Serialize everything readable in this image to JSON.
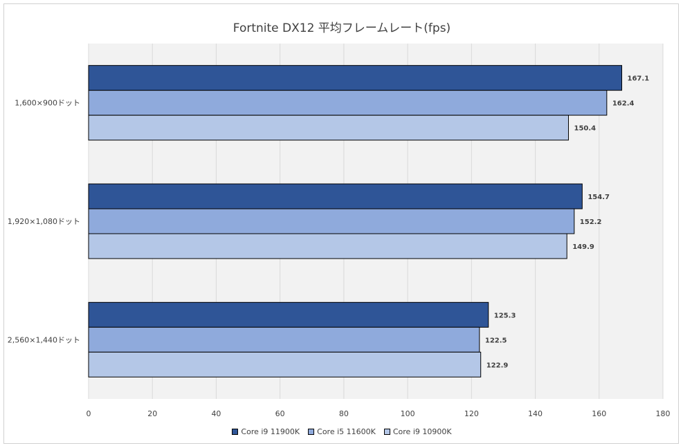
{
  "chart_data": {
    "type": "bar",
    "orientation": "horizontal",
    "title": "Fortnite DX12 平均フレームレート(fps)",
    "categories": [
      "1,600×900ドット",
      "1,920×1,080ドット",
      "2,560×1,440ドット"
    ],
    "series": [
      {
        "name": "Core i9 11900K",
        "color": "#2f5597",
        "values": [
          167.1,
          154.7,
          125.3
        ]
      },
      {
        "name": "Core i5 11600K",
        "color": "#8faadc",
        "values": [
          162.4,
          152.2,
          122.5
        ]
      },
      {
        "name": "Core i9 10900K",
        "color": "#b4c7e7",
        "values": [
          150.4,
          149.9,
          122.9
        ]
      }
    ],
    "xlim": [
      0,
      180
    ],
    "xticks": [
      "0",
      "20",
      "40",
      "60",
      "80",
      "100",
      "120",
      "140",
      "160",
      "180"
    ],
    "grid": true,
    "legend_position": "bottom",
    "data_labels": [
      "167.1",
      "162.4",
      "150.4",
      "154.7",
      "152.2",
      "149.9",
      "125.3",
      "122.5",
      "122.9"
    ]
  }
}
